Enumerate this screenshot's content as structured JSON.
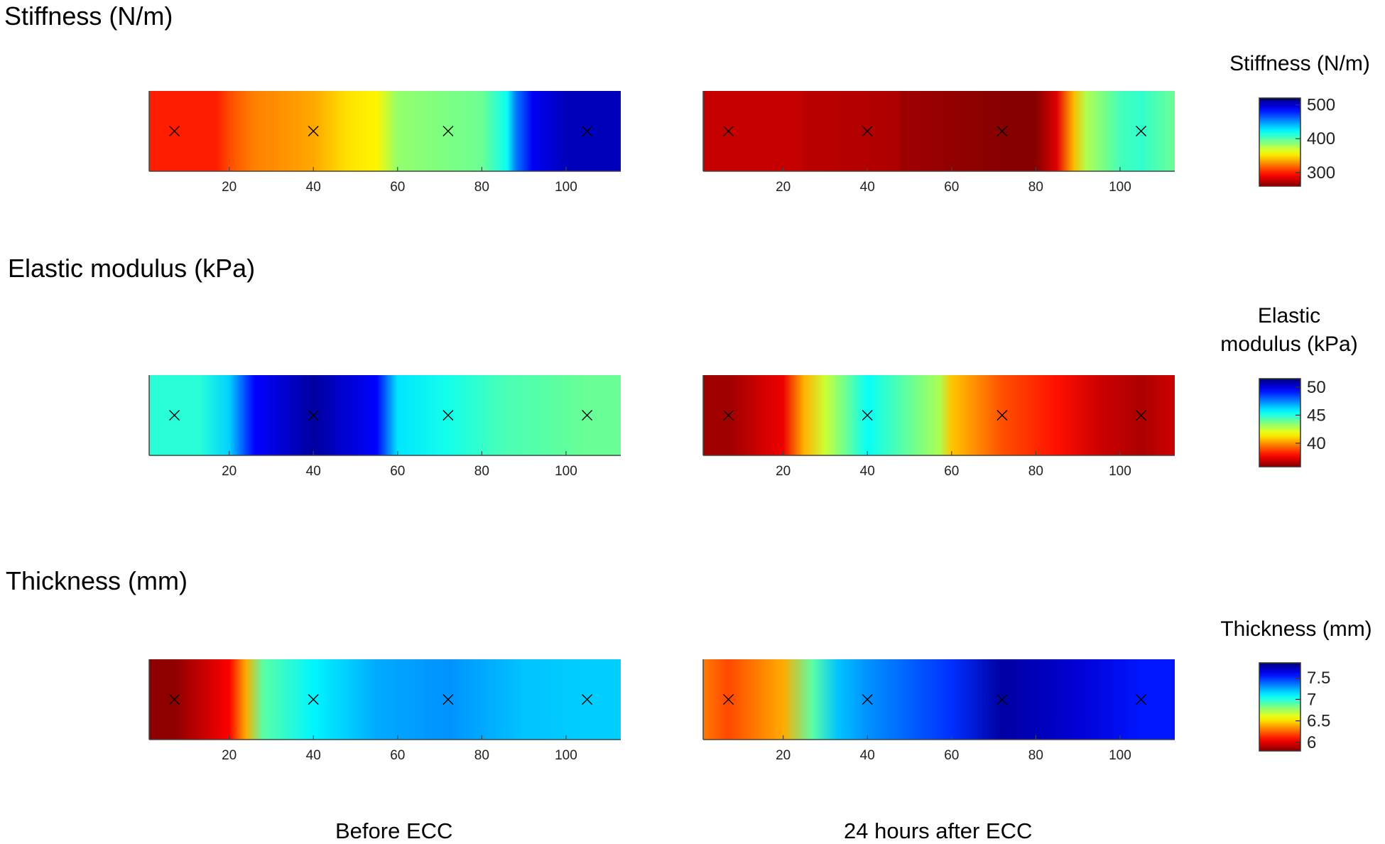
{
  "row_titles": [
    "Stiffness (N/m)",
    "Elastic modulus (kPa)",
    "Thickness (mm)"
  ],
  "colorbar_titles": {
    "stiffness": "Stiffness (N/m)",
    "elastic_line1": "Elastic",
    "elastic_line2": "modulus (kPa)",
    "thickness": "Thickness (mm)"
  },
  "column_labels": [
    "Before ECC",
    "24 hours after ECC"
  ],
  "colors": {
    "dark_red": "#800000",
    "red": "#e00000",
    "orange": "#ff7f00",
    "yellow": "#ffff00",
    "cyan": "#00ffff",
    "blue": "#0080ff",
    "dark_blue": "#000080",
    "marker": "#000000"
  },
  "chart_data": [
    {
      "type": "heatmap",
      "quantity": "stiffness",
      "condition": "Before ECC",
      "colormap": "jet",
      "clim": [
        260,
        520
      ],
      "xlim": [
        1,
        113
      ],
      "xticks": [
        20,
        40,
        60,
        80,
        100
      ],
      "sample_points": [
        7,
        40,
        72,
        105
      ],
      "stops": [
        [
          1,
          300
        ],
        [
          17,
          300
        ],
        [
          20,
          312
        ],
        [
          26,
          325
        ],
        [
          40,
          335
        ],
        [
          48,
          350
        ],
        [
          55,
          355
        ],
        [
          60,
          385
        ],
        [
          80,
          395
        ],
        [
          86,
          420
        ],
        [
          88,
          455
        ],
        [
          92,
          490
        ],
        [
          100,
          505
        ],
        [
          113,
          505
        ]
      ]
    },
    {
      "type": "heatmap",
      "quantity": "stiffness",
      "condition": "24 hours after ECC",
      "colormap": "jet",
      "clim": [
        260,
        520
      ],
      "xlim": [
        1,
        113
      ],
      "xticks": [
        20,
        40,
        60,
        80,
        100
      ],
      "sample_points": [
        7,
        40,
        72,
        105
      ],
      "stops": [
        [
          1,
          278
        ],
        [
          24,
          278
        ],
        [
          25,
          275
        ],
        [
          47,
          272
        ],
        [
          48,
          268
        ],
        [
          72,
          262
        ],
        [
          80,
          262
        ],
        [
          85,
          285
        ],
        [
          89,
          340
        ],
        [
          92,
          378
        ],
        [
          100,
          405
        ],
        [
          105,
          410
        ],
        [
          113,
          395
        ]
      ]
    },
    {
      "type": "colorbar",
      "quantity": "stiffness",
      "title": "Stiffness (N/m)",
      "clim": [
        260,
        520
      ],
      "ticks": [
        300,
        400,
        500
      ]
    },
    {
      "type": "heatmap",
      "quantity": "elastic modulus",
      "condition": "Before ECC",
      "colormap": "jet",
      "clim": [
        35.8,
        51.5
      ],
      "xlim": [
        1,
        113
      ],
      "xticks": [
        20,
        40,
        60,
        80,
        100
      ],
      "sample_points": [
        7,
        40,
        72,
        105
      ],
      "stops": [
        [
          1,
          45
        ],
        [
          13,
          45
        ],
        [
          20,
          46.3
        ],
        [
          26,
          49.5
        ],
        [
          40,
          51
        ],
        [
          55,
          49.5
        ],
        [
          60,
          46
        ],
        [
          72,
          45.3
        ],
        [
          85,
          44.5
        ],
        [
          105,
          44
        ],
        [
          113,
          44
        ]
      ]
    },
    {
      "type": "heatmap",
      "quantity": "elastic modulus",
      "condition": "24 hours after ECC",
      "colormap": "jet",
      "clim": [
        35.8,
        51.5
      ],
      "xlim": [
        1,
        113
      ],
      "xticks": [
        20,
        40,
        60,
        80,
        100
      ],
      "sample_points": [
        7,
        40,
        72,
        105
      ],
      "stops": [
        [
          1,
          36.3
        ],
        [
          7,
          36.3
        ],
        [
          20,
          37.5
        ],
        [
          25,
          40.5
        ],
        [
          30,
          42.5
        ],
        [
          40,
          45.5
        ],
        [
          57,
          43
        ],
        [
          60,
          40.8
        ],
        [
          72,
          39
        ],
        [
          85,
          38
        ],
        [
          95,
          37
        ],
        [
          105,
          36.5
        ],
        [
          113,
          37
        ]
      ]
    },
    {
      "type": "colorbar",
      "quantity": "elastic modulus",
      "title": "Elastic modulus (kPa)",
      "clim": [
        35.8,
        51.5
      ],
      "ticks": [
        40,
        45,
        50
      ]
    },
    {
      "type": "heatmap",
      "quantity": "thickness",
      "condition": "Before ECC",
      "colormap": "jet",
      "clim": [
        5.8,
        7.85
      ],
      "xlim": [
        1,
        113
      ],
      "xticks": [
        20,
        40,
        60,
        80,
        100
      ],
      "sample_points": [
        7,
        40,
        72,
        105
      ],
      "stops": [
        [
          1,
          5.83
        ],
        [
          7,
          5.83
        ],
        [
          20,
          6.05
        ],
        [
          24,
          6.4
        ],
        [
          28,
          6.9
        ],
        [
          40,
          7.1
        ],
        [
          55,
          7.25
        ],
        [
          72,
          7.3
        ],
        [
          90,
          7.2
        ],
        [
          105,
          7.18
        ],
        [
          113,
          7.18
        ]
      ]
    },
    {
      "type": "heatmap",
      "quantity": "thickness",
      "condition": "24 hours after ECC",
      "colormap": "jet",
      "clim": [
        5.8,
        7.85
      ],
      "xlim": [
        1,
        113
      ],
      "xticks": [
        20,
        40,
        60,
        80,
        100
      ],
      "sample_points": [
        7,
        40,
        72,
        105
      ],
      "stops": [
        [
          1,
          6.3
        ],
        [
          7,
          6.2
        ],
        [
          20,
          6.4
        ],
        [
          27,
          6.9
        ],
        [
          33,
          7.2
        ],
        [
          40,
          7.3
        ],
        [
          60,
          7.5
        ],
        [
          72,
          7.78
        ],
        [
          90,
          7.68
        ],
        [
          105,
          7.55
        ],
        [
          113,
          7.55
        ]
      ]
    },
    {
      "type": "colorbar",
      "quantity": "thickness",
      "title": "Thickness (mm)",
      "clim": [
        5.8,
        7.85
      ],
      "ticks": [
        6,
        6.5,
        7,
        7.5
      ]
    }
  ]
}
